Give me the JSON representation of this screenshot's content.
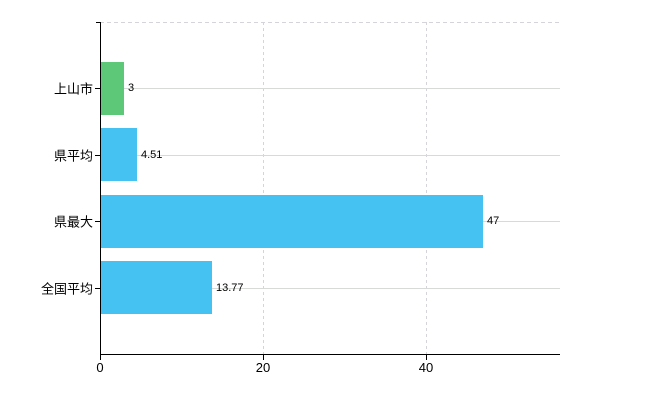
{
  "chart_data": {
    "type": "bar",
    "orientation": "horizontal",
    "title": "",
    "categories": [
      "上山市",
      "県平均",
      "県最大",
      "全国平均"
    ],
    "values": [
      3,
      4.51,
      47,
      13.77
    ],
    "value_labels": [
      "3",
      "4.51",
      "47",
      "13.77"
    ],
    "series": [
      {
        "name": "",
        "values": [
          3,
          4.51,
          47,
          13.77
        ]
      }
    ],
    "x_ticks": [
      {
        "value": 0,
        "label": "0"
      },
      {
        "value": 20,
        "label": "20"
      },
      {
        "value": 40,
        "label": "40"
      }
    ],
    "xlim": [
      0,
      56.4
    ],
    "ylabel": "",
    "xlabel": "",
    "legend": null,
    "grid": {
      "horizontal_lines": "solid, one per category row",
      "vertical_lines": "dashed, at x ticks 20 and 40",
      "top_border": "dashed"
    },
    "colors": {
      "bar_highlight": "#5dc878",
      "bar_default": "#45c1f2",
      "bar_colors": [
        "#5dc878",
        "#45c1f2",
        "#45c1f2",
        "#45c1f2"
      ],
      "axis_line": "#000000",
      "grid_solid": "#d7dbd7",
      "grid_dashed": "#d4d4da",
      "label_text": "#000000"
    }
  }
}
